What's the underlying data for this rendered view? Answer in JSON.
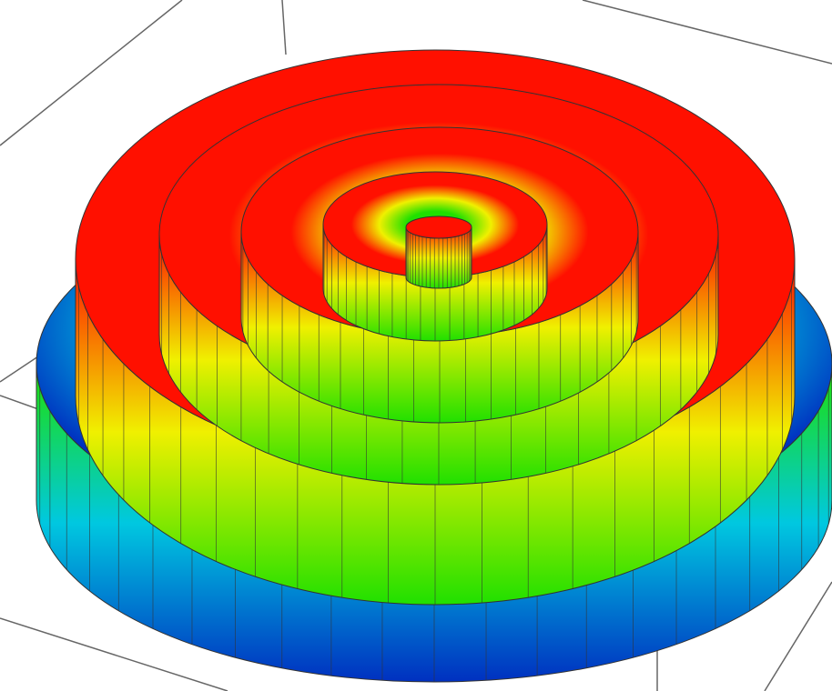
{
  "chart_data": {
    "type": "surface",
    "colorscale": [
      "#0030c0",
      "#00c8e0",
      "#20e000",
      "#f0f000",
      "#ff1000"
    ],
    "grid": true
  }
}
